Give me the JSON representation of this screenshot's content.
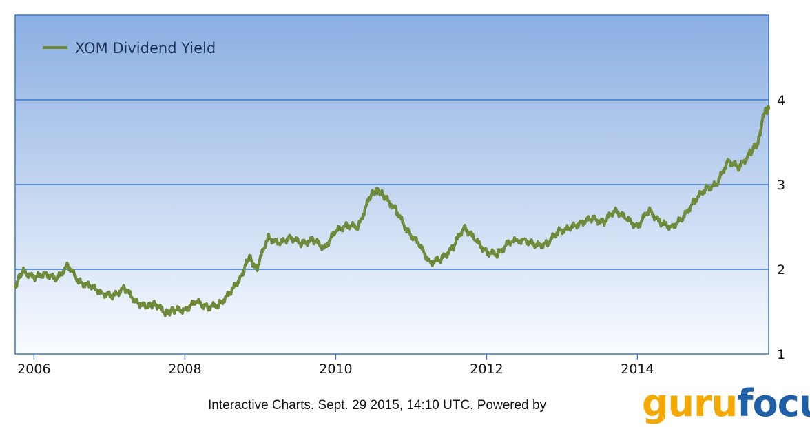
{
  "chart_data": {
    "type": "line",
    "legend": {
      "position": "top-left"
    },
    "grid": true,
    "x_unit": "year",
    "xlim": [
      2005.75,
      2015.74
    ],
    "ylim": [
      1,
      5
    ],
    "x_ticks": [
      "2006",
      "2008",
      "2010",
      "2012",
      "2014"
    ],
    "y_ticks": [
      "1",
      "2",
      "3",
      "4"
    ],
    "colors": {
      "line": "#6f8b3a",
      "grid": "#3a78cc",
      "frame": "#3a78cc",
      "bg_top": "#8aaee2",
      "bg_bottom": "#fafcff"
    },
    "series": [
      {
        "name": "XOM Dividend Yield",
        "x": [
          2005.75,
          2005.85,
          2006.0,
          2006.15,
          2006.3,
          2006.45,
          2006.6,
          2006.75,
          2006.9,
          2007.05,
          2007.2,
          2007.35,
          2007.5,
          2007.6,
          2007.75,
          2007.85,
          2008.0,
          2008.15,
          2008.3,
          2008.45,
          2008.6,
          2008.75,
          2008.85,
          2008.95,
          2009.1,
          2009.25,
          2009.4,
          2009.55,
          2009.7,
          2009.85,
          2010.0,
          2010.15,
          2010.3,
          2010.45,
          2010.55,
          2010.65,
          2010.8,
          2010.95,
          2011.1,
          2011.25,
          2011.4,
          2011.55,
          2011.7,
          2011.85,
          2012.0,
          2012.15,
          2012.3,
          2012.5,
          2012.65,
          2012.8,
          2012.95,
          2013.1,
          2013.25,
          2013.4,
          2013.55,
          2013.7,
          2013.85,
          2014.0,
          2014.15,
          2014.3,
          2014.45,
          2014.6,
          2014.75,
          2014.9,
          2015.05,
          2015.2,
          2015.35,
          2015.5,
          2015.6,
          2015.68,
          2015.74
        ],
        "y": [
          1.8,
          1.98,
          1.9,
          1.95,
          1.88,
          2.05,
          1.85,
          1.8,
          1.72,
          1.68,
          1.78,
          1.62,
          1.55,
          1.6,
          1.48,
          1.52,
          1.52,
          1.62,
          1.55,
          1.58,
          1.72,
          1.92,
          2.15,
          2.0,
          2.38,
          2.3,
          2.38,
          2.3,
          2.35,
          2.25,
          2.45,
          2.52,
          2.5,
          2.85,
          2.95,
          2.85,
          2.7,
          2.45,
          2.3,
          2.08,
          2.12,
          2.25,
          2.5,
          2.35,
          2.2,
          2.18,
          2.32,
          2.35,
          2.28,
          2.3,
          2.45,
          2.48,
          2.55,
          2.6,
          2.55,
          2.7,
          2.6,
          2.5,
          2.7,
          2.55,
          2.5,
          2.6,
          2.8,
          2.95,
          3.0,
          3.28,
          3.2,
          3.38,
          3.5,
          3.85,
          3.9
        ]
      }
    ]
  },
  "footer": {
    "text": "Interactive Charts. Sept. 29 2015, 14:10 UTC. Powered by",
    "logo_part1": "guru",
    "logo_part2": "focus"
  }
}
